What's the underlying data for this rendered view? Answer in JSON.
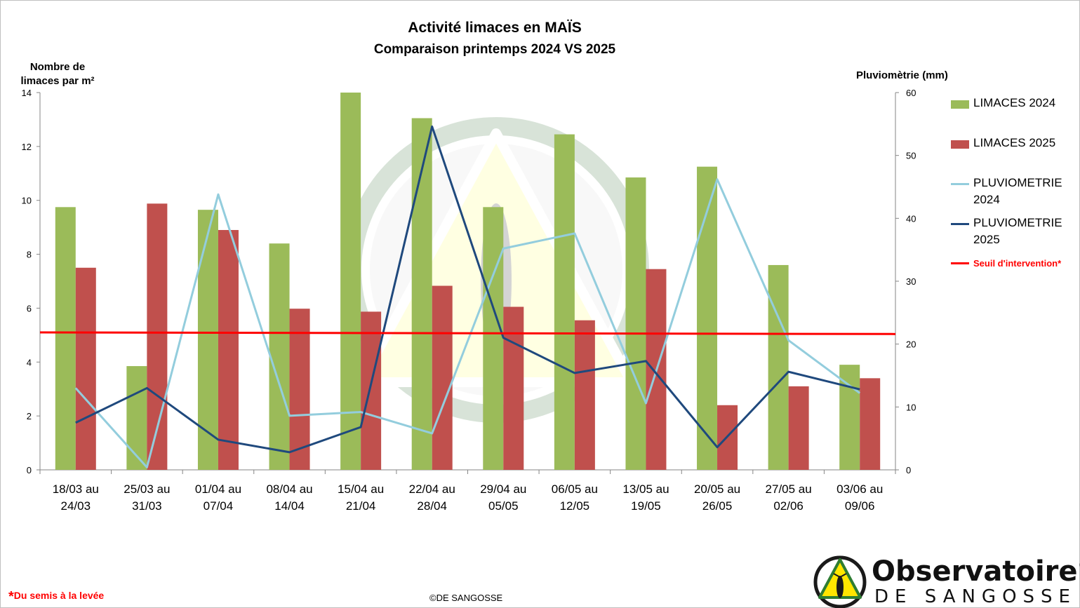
{
  "title": "Activité limaces en MAÏS",
  "subtitle": "Comparaison printemps 2024 VS 2025",
  "ylabel_left": "Nombre de limaces par m²",
  "ylabel_right": "Pluviomètrie (mm)",
  "footnote": "Du semis à la levée",
  "footnote_mark": "*",
  "copyright": "©DE SANGOSSE",
  "logo": {
    "main": "Observatoire",
    "reg": "®",
    "sub": "DE SANGOSSE"
  },
  "legend": {
    "limaces_2024": "LIMACES 2024",
    "limaces_2025": "LIMACES 2025",
    "pluvio_2024": "PLUVIOMETRIE 2024",
    "pluvio_2025": "PLUVIOMETRIE 2025",
    "seuil": "Seuil d'intervention*"
  },
  "colors": {
    "limaces_2024": "#9bbb59",
    "limaces_2025": "#c0504d",
    "pluvio_2024": "#93cddd",
    "pluvio_2025": "#1f497d",
    "seuil": "#ff0000"
  },
  "chart_data": {
    "type": "bar",
    "categories": [
      [
        "18/03 au",
        "24/03"
      ],
      [
        "25/03 au",
        "31/03"
      ],
      [
        "01/04 au",
        "07/04"
      ],
      [
        "08/04 au",
        "14/04"
      ],
      [
        "15/04 au",
        "21/04"
      ],
      [
        "22/04 au",
        "28/04"
      ],
      [
        "29/04 au",
        "05/05"
      ],
      [
        "06/05 au",
        "12/05"
      ],
      [
        "13/05 au",
        "19/05"
      ],
      [
        "20/05 au",
        "26/05"
      ],
      [
        "27/05 au",
        "02/06"
      ],
      [
        "03/06 au",
        "09/06"
      ]
    ],
    "series": [
      {
        "name": "LIMACES 2024",
        "type": "bar",
        "axis": "left",
        "values": [
          9.75,
          3.85,
          9.65,
          8.4,
          14.0,
          13.05,
          9.75,
          12.45,
          10.85,
          11.25,
          7.6,
          3.9
        ]
      },
      {
        "name": "LIMACES 2025",
        "type": "bar",
        "axis": "left",
        "values": [
          7.5,
          9.88,
          8.9,
          5.98,
          5.87,
          6.83,
          6.05,
          5.55,
          7.45,
          2.4,
          3.1,
          3.4
        ]
      },
      {
        "name": "PLUVIOMETRIE 2024",
        "type": "line",
        "axis": "right",
        "values": [
          13.0,
          0.4,
          43.8,
          8.6,
          9.2,
          5.8,
          35.2,
          37.6,
          10.6,
          46.2,
          20.6,
          12.2
        ]
      },
      {
        "name": "PLUVIOMETRIE 2025",
        "type": "line",
        "axis": "right",
        "values": [
          7.5,
          13.0,
          4.8,
          2.8,
          6.8,
          54.6,
          21.0,
          15.4,
          17.3,
          3.6,
          15.6,
          12.8
        ]
      },
      {
        "name": "Seuil d'intervention*",
        "type": "line",
        "axis": "left",
        "values": [
          5.1,
          5.09,
          5.08,
          5.08,
          5.07,
          5.07,
          5.06,
          5.06,
          5.05,
          5.05,
          5.04,
          5.04
        ]
      }
    ],
    "ylim_left": [
      0,
      14
    ],
    "yticks_left": [
      0,
      2,
      4,
      6,
      8,
      10,
      12,
      14
    ],
    "ylim_right": [
      0,
      60
    ],
    "yticks_right": [
      0,
      10,
      20,
      30,
      40,
      50,
      60
    ],
    "grid": false,
    "legend_position": "right"
  }
}
